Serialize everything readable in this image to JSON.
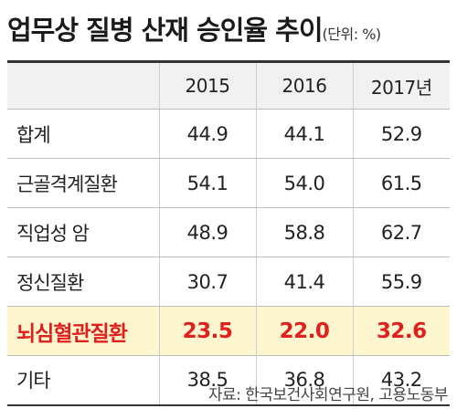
{
  "chart_data": {
    "type": "table",
    "title": "업무상 질병 산재 승인율 추이",
    "unit_note": "(단위: %)",
    "columns": [
      "2015",
      "2016",
      "2017년"
    ],
    "rows": [
      {
        "label": "합계",
        "values": [
          "44.9",
          "44.1",
          "52.9"
        ]
      },
      {
        "label": "근골격계질환",
        "values": [
          "54.1",
          "54.0",
          "61.5"
        ]
      },
      {
        "label": "직업성 암",
        "values": [
          "48.9",
          "58.8",
          "62.7"
        ]
      },
      {
        "label": "정신질환",
        "values": [
          "30.7",
          "41.4",
          "55.9"
        ]
      },
      {
        "label": "뇌심혈관질환",
        "values": [
          "23.5",
          "22.0",
          "32.6"
        ],
        "highlighted": true
      },
      {
        "label": "기타",
        "values": [
          "38.5",
          "36.8",
          "43.2"
        ]
      }
    ],
    "highlight_colors": {
      "background": "#fdf6cf",
      "text": "#e01f1f"
    },
    "source": "자료: 한국보건사회연구원, 고용노동부"
  }
}
